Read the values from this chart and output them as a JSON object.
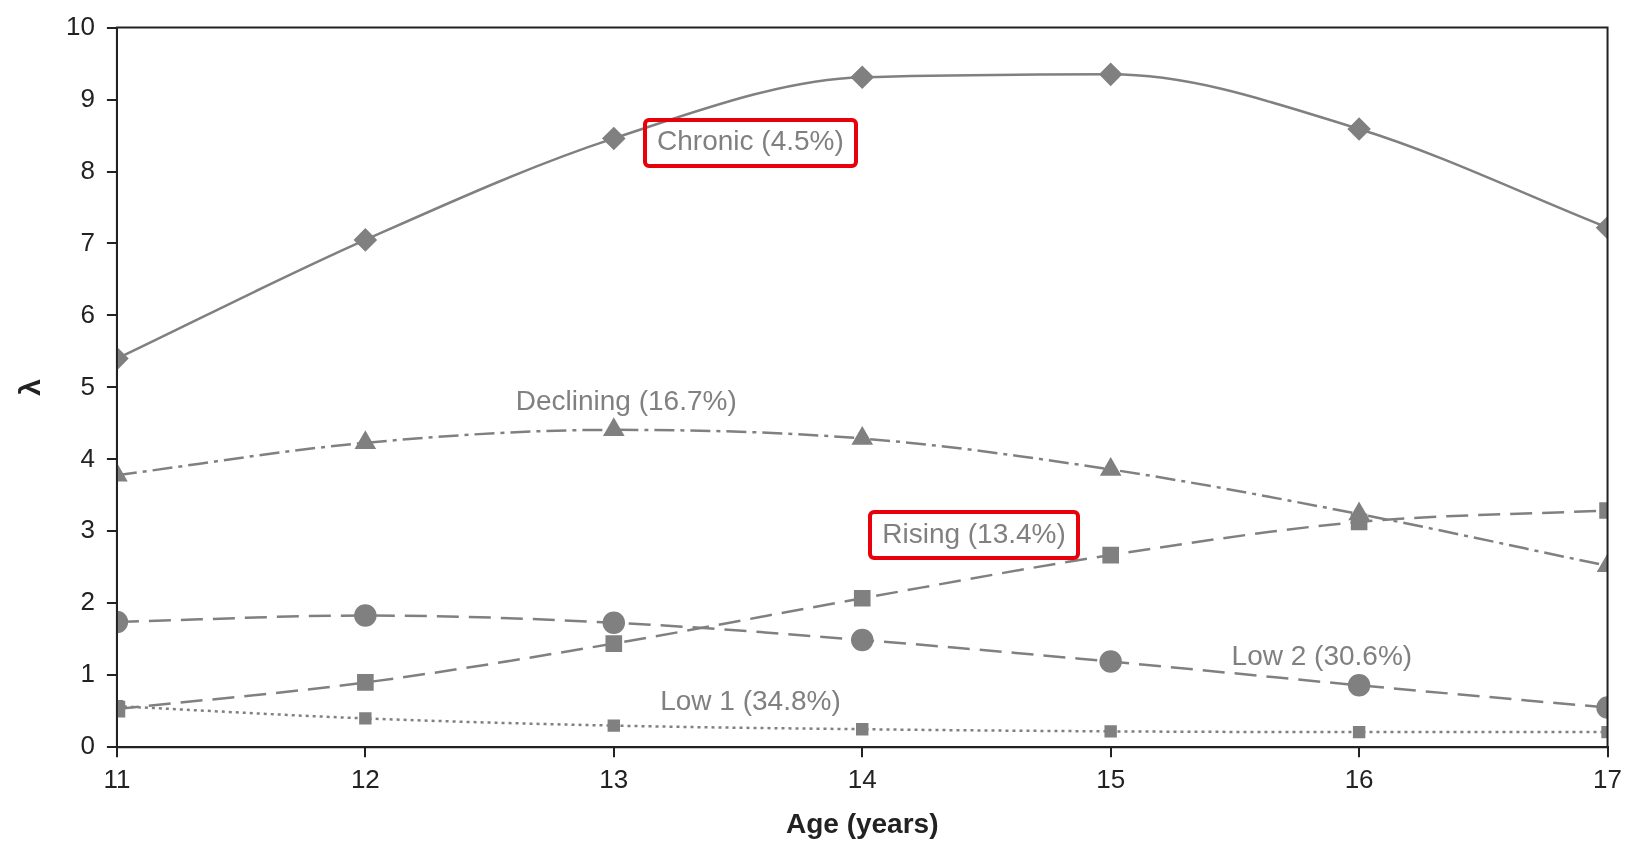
{
  "chart_data": {
    "type": "line",
    "xlabel": "Age (years)",
    "ylabel": "λ",
    "x": [
      11,
      12,
      13,
      14,
      15,
      16,
      17
    ],
    "xlim": [
      11,
      17
    ],
    "xticks": [
      11,
      12,
      13,
      14,
      15,
      16,
      17
    ],
    "ylim": [
      0,
      10
    ],
    "yticks": [
      0,
      1,
      2,
      3,
      4,
      5,
      6,
      7,
      8,
      9,
      10
    ],
    "grid": false,
    "legend": false,
    "series": [
      {
        "name": "Chronic (4.5%)",
        "color": "#808080",
        "marker": "diamond",
        "line_style": "solid",
        "values": [
          5.4,
          7.05,
          8.46,
          9.31,
          9.35,
          8.59,
          7.22
        ]
      },
      {
        "name": "Declining (16.7%)",
        "color": "#808080",
        "marker": "triangle",
        "line_style": "dashdot",
        "values": [
          3.78,
          4.23,
          4.41,
          4.29,
          3.86,
          3.24,
          2.52
        ]
      },
      {
        "name": "Rising (13.4%)",
        "color": "#808080",
        "marker": "square",
        "line_style": "dashed",
        "values": [
          0.53,
          0.9,
          1.44,
          2.07,
          2.67,
          3.13,
          3.29
        ]
      },
      {
        "name": "Low 2 (30.6%)",
        "color": "#808080",
        "marker": "circle",
        "line_style": "dashed",
        "values": [
          1.74,
          1.83,
          1.73,
          1.49,
          1.19,
          0.86,
          0.55
        ]
      },
      {
        "name": "Low 1 (34.8%)",
        "color": "#808080",
        "marker": "square",
        "line_style": "dotted",
        "values": [
          0.57,
          0.4,
          0.3,
          0.25,
          0.22,
          0.21,
          0.21
        ]
      }
    ]
  }
}
